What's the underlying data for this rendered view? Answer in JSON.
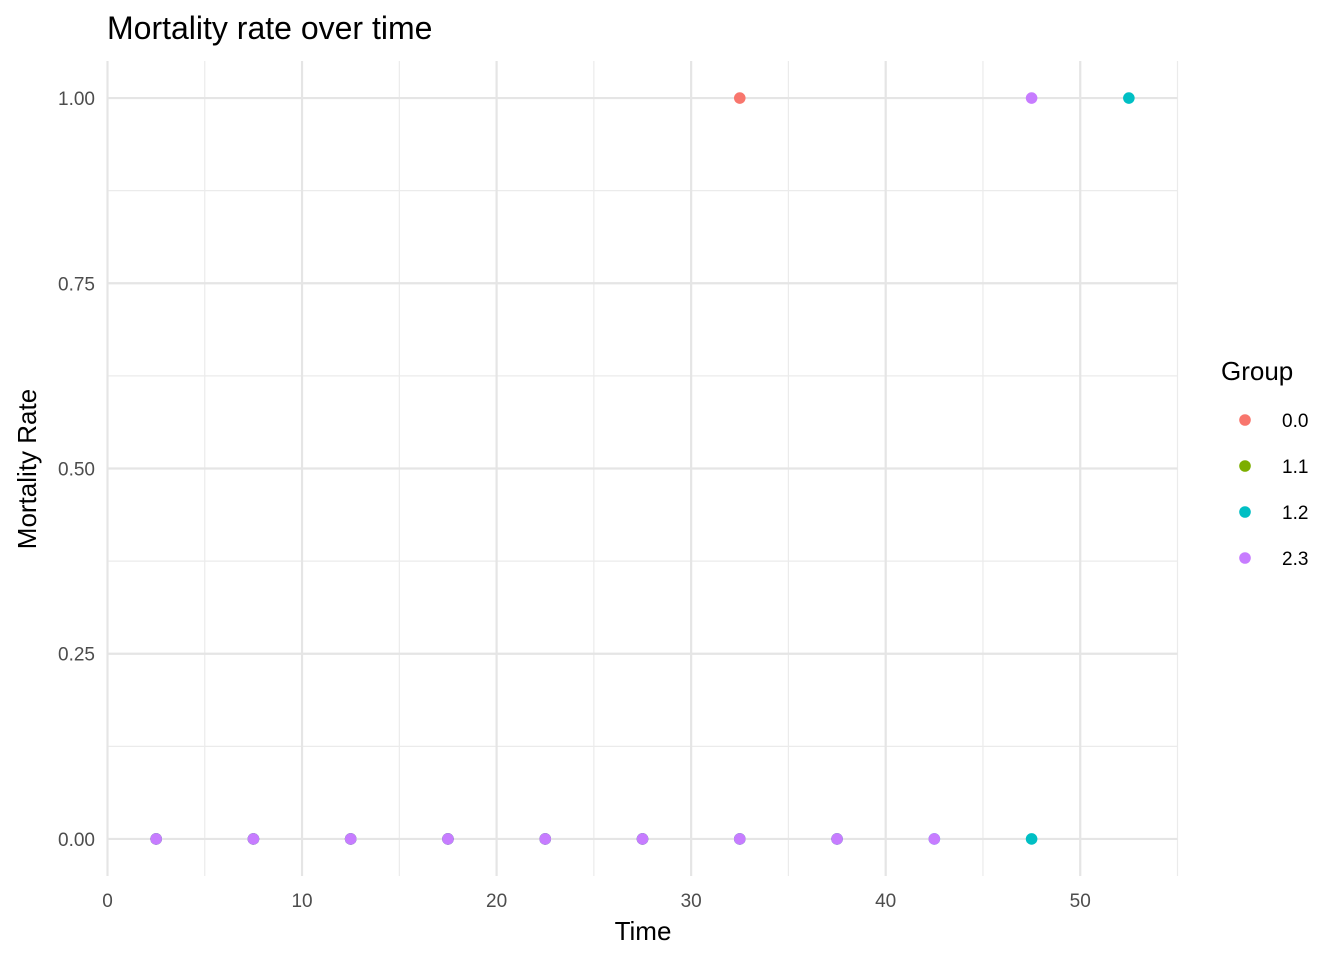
{
  "chart_data": {
    "type": "scatter",
    "title": "Mortality rate over time",
    "xlabel": "Time",
    "ylabel": "Mortality Rate",
    "xlim": [
      0,
      55
    ],
    "ylim": [
      -0.05,
      1.05
    ],
    "x_ticks": [
      0,
      10,
      20,
      30,
      40,
      50
    ],
    "x_tick_labels": [
      "0",
      "10",
      "20",
      "30",
      "40",
      "50"
    ],
    "x_minor_ticks": [
      5,
      15,
      25,
      35,
      45,
      55
    ],
    "y_ticks": [
      0,
      0.25,
      0.5,
      0.75,
      1
    ],
    "y_tick_labels": [
      "0.00",
      "0.25",
      "0.50",
      "0.75",
      "1.00"
    ],
    "y_minor_ticks": [
      0.125,
      0.375,
      0.625,
      0.875
    ],
    "grid": true,
    "legend": {
      "title": "Group",
      "position": "right"
    },
    "series": [
      {
        "name": "0.0",
        "color": "#F8766D",
        "points": [
          {
            "x": 2.5,
            "y": 0
          },
          {
            "x": 7.5,
            "y": 0
          },
          {
            "x": 12.5,
            "y": 0
          },
          {
            "x": 17.5,
            "y": 0
          },
          {
            "x": 22.5,
            "y": 0
          },
          {
            "x": 27.5,
            "y": 0
          },
          {
            "x": 32.5,
            "y": 1
          }
        ]
      },
      {
        "name": "1.1",
        "color": "#7CAE00",
        "points": [
          {
            "x": 2.5,
            "y": 0
          },
          {
            "x": 7.5,
            "y": 0
          },
          {
            "x": 12.5,
            "y": 0
          },
          {
            "x": 17.5,
            "y": 0
          },
          {
            "x": 22.5,
            "y": 0
          },
          {
            "x": 27.5,
            "y": 0
          },
          {
            "x": 32.5,
            "y": 0
          },
          {
            "x": 37.5,
            "y": 0
          }
        ]
      },
      {
        "name": "1.2",
        "color": "#00BFC4",
        "points": [
          {
            "x": 2.5,
            "y": 0
          },
          {
            "x": 7.5,
            "y": 0
          },
          {
            "x": 12.5,
            "y": 0
          },
          {
            "x": 17.5,
            "y": 0
          },
          {
            "x": 22.5,
            "y": 0
          },
          {
            "x": 27.5,
            "y": 0
          },
          {
            "x": 32.5,
            "y": 0
          },
          {
            "x": 37.5,
            "y": 0
          },
          {
            "x": 42.5,
            "y": 0
          },
          {
            "x": 47.5,
            "y": 0
          },
          {
            "x": 52.5,
            "y": 1
          }
        ]
      },
      {
        "name": "2.3",
        "color": "#C77CFF",
        "points": [
          {
            "x": 2.5,
            "y": 0
          },
          {
            "x": 7.5,
            "y": 0
          },
          {
            "x": 12.5,
            "y": 0
          },
          {
            "x": 17.5,
            "y": 0
          },
          {
            "x": 22.5,
            "y": 0
          },
          {
            "x": 27.5,
            "y": 0
          },
          {
            "x": 32.5,
            "y": 0
          },
          {
            "x": 37.5,
            "y": 0
          },
          {
            "x": 42.5,
            "y": 0
          },
          {
            "x": 47.5,
            "y": 1
          }
        ]
      }
    ]
  }
}
